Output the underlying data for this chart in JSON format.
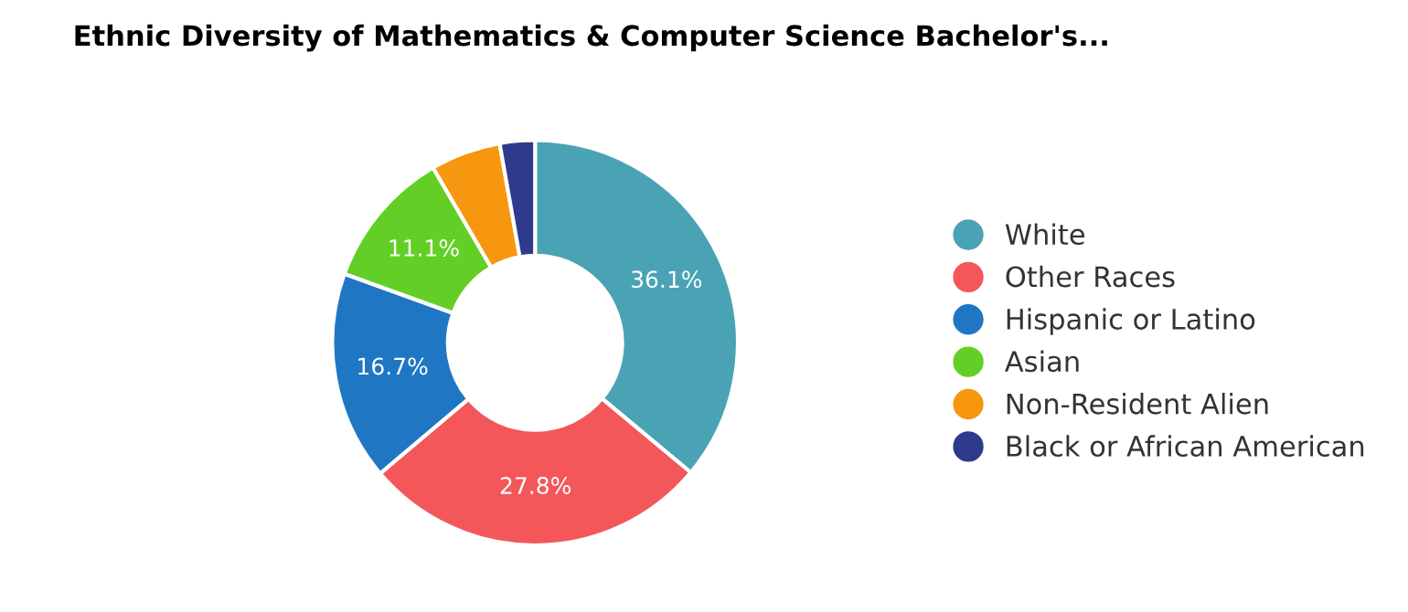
{
  "chart_data": {
    "type": "donut",
    "title": "Ethnic Diversity of Mathematics & Computer Science Bachelor's...",
    "categories": [
      "White",
      "Other Races",
      "Hispanic or Latino",
      "Asian",
      "Non-Resident Alien",
      "Black or African American"
    ],
    "values": [
      36.1,
      27.8,
      16.7,
      11.1,
      5.6,
      2.8
    ],
    "value_labels": [
      "36.1%",
      "27.8%",
      "16.7%",
      "11.1%",
      null,
      null
    ],
    "colors": [
      "#4aa3b5",
      "#f4575a",
      "#1f77c4",
      "#63cf26",
      "#f7970f",
      "#2e3a8c"
    ],
    "legend": "right"
  }
}
